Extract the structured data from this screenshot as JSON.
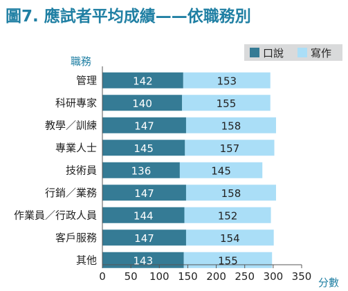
{
  "title": "圖7. 應試者平均成績——依職務別",
  "chart_data": {
    "type": "bar",
    "orientation": "horizontal",
    "stacked": true,
    "ylabel": "職務",
    "xlabel": "分數",
    "categories": [
      "管理",
      "科研專家",
      "教學／訓練",
      "專業人士",
      "技術員",
      "行銷／業務",
      "作業員／行政人員",
      "客戶服務",
      "其他"
    ],
    "series": [
      {
        "name": "口說",
        "values": [
          142,
          140,
          147,
          145,
          136,
          147,
          144,
          147,
          143
        ],
        "color": "#357b95"
      },
      {
        "name": "寫作",
        "values": [
          153,
          155,
          158,
          157,
          145,
          158,
          152,
          154,
          155
        ],
        "color": "#aadef7"
      }
    ],
    "xlim": [
      0,
      350
    ],
    "xticks": [
      0,
      50,
      100,
      150,
      200,
      250,
      300,
      350
    ],
    "grid": false,
    "legend_position": "top-right",
    "colors": {
      "title": "#1f7fa3",
      "axis_title": "#1f7fa3",
      "legend_bg": "#d9dadb",
      "axis": "#555555",
      "text": "#222222"
    }
  }
}
